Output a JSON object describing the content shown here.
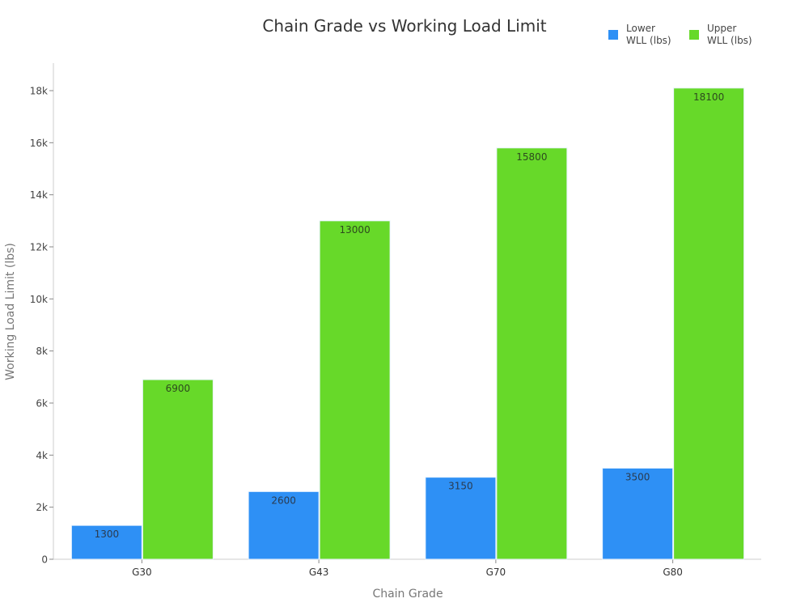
{
  "chart_data": {
    "type": "bar",
    "title": "Chain Grade vs Working Load Limit",
    "xlabel": "Chain Grade",
    "ylabel": "Working Load Limit (lbs)",
    "categories": [
      "G30",
      "G43",
      "G70",
      "G80"
    ],
    "series": [
      {
        "name": "Lower WLL (lbs)",
        "color": "#2e90f5",
        "values": [
          1300,
          2600,
          3150,
          3500
        ]
      },
      {
        "name": "Upper WLL (lbs)",
        "color": "#67d929",
        "values": [
          6900,
          13000,
          15800,
          18100
        ]
      }
    ],
    "yticks": [
      0,
      2000,
      4000,
      6000,
      8000,
      10000,
      12000,
      14000,
      16000,
      18000
    ],
    "ytick_labels": [
      "0",
      "2k",
      "4k",
      "6k",
      "8k",
      "10k",
      "12k",
      "14k",
      "16k",
      "18k"
    ],
    "ylim": [
      0,
      19000
    ],
    "grid": false,
    "legend_position": "top-right",
    "data_labels": true
  },
  "legend": {
    "lower_line1": "Lower",
    "lower_line2": "WLL (lbs)",
    "upper_line1": "Upper",
    "upper_line2": "WLL (lbs)"
  }
}
